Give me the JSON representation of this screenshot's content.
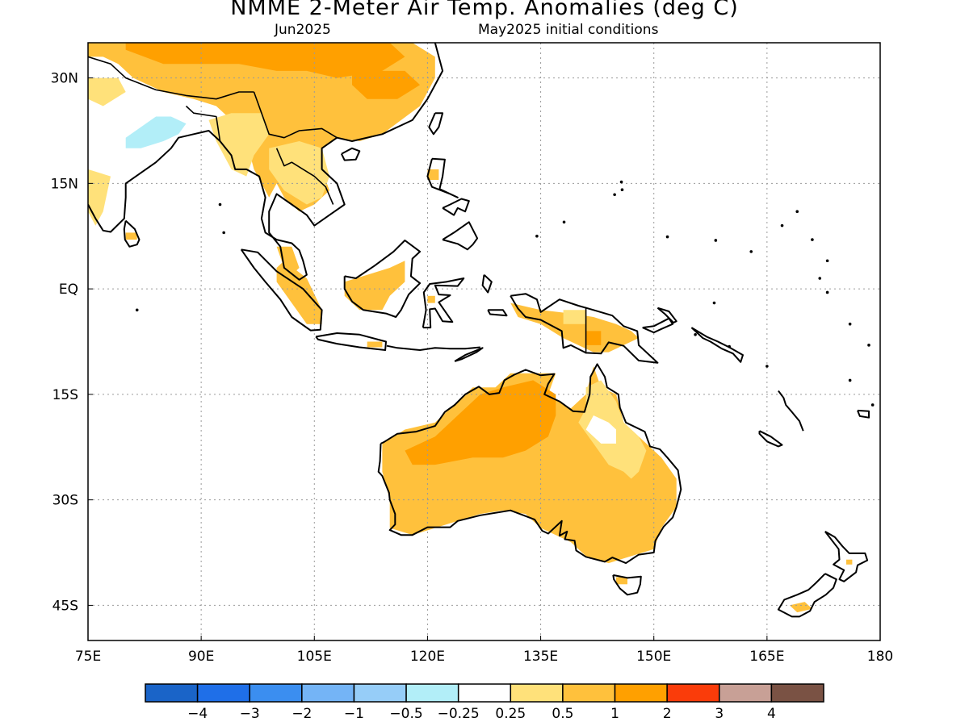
{
  "header": {
    "title": "NMME 2-Meter Air Temp. Anomalies (deg C)",
    "valid_month": "Jun2025",
    "init": "May2025 initial conditions"
  },
  "map": {
    "lon_range": [
      75,
      180
    ],
    "lat_range": [
      -50,
      35
    ],
    "x_ticks": [
      "75E",
      "90E",
      "105E",
      "120E",
      "135E",
      "150E",
      "165E",
      "180"
    ],
    "y_ticks": [
      "30N",
      "15N",
      "EQ",
      "15S",
      "30S",
      "45S"
    ],
    "grid": true
  },
  "colorbar": {
    "colors": [
      "#1a64c8",
      "#1f6fe8",
      "#3b8ef0",
      "#74b4f6",
      "#96cdf8",
      "#b2eef8",
      "#ffffff",
      "#ffe17a",
      "#ffc13c",
      "#ffa000",
      "#fa3c0a",
      "#c8a096",
      "#7a5244"
    ],
    "labels": [
      "−4",
      "−3",
      "−2",
      "−1",
      "−0.5",
      "−0.25",
      "0.25",
      "0.5",
      "1",
      "2",
      "3",
      "4"
    ]
  },
  "palette": {
    "coast": "#000000",
    "grid": "#9a9a9a",
    "land_light": "#ffe17a",
    "land_mid": "#ffc13c",
    "land_hot": "#ffa000",
    "cool": "#b2eef8"
  }
}
